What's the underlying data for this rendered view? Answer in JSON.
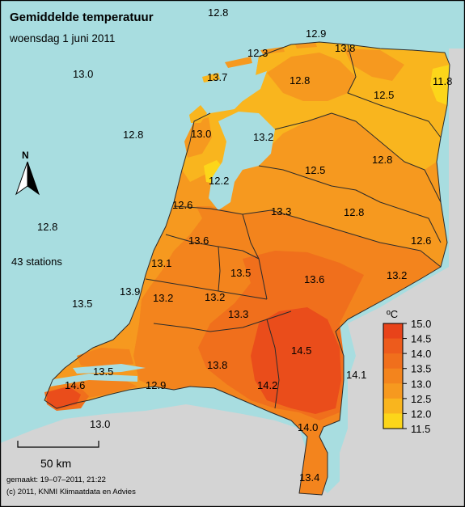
{
  "title": "Gemiddelde temperatuur",
  "subtitle": "woensdag 1 juni 2011",
  "station_count": "43 stations",
  "north_label": "N",
  "scale_label": "50 km",
  "footer": {
    "made": "gemaakt: 19–07–2011, 21:22",
    "copyright": "(c) 2011, KNMI Klimaatdata en Advies"
  },
  "legend": {
    "unit": "ºC",
    "ticks": [
      "15.0",
      "14.5",
      "14.0",
      "13.5",
      "13.0",
      "12.5",
      "12.0",
      "11.5"
    ],
    "colors": [
      "#e8431a",
      "#ed5b1c",
      "#f06f1c",
      "#f3841d",
      "#f6991f",
      "#f9b51e",
      "#fcd61a",
      "#ffff00"
    ]
  },
  "colors": {
    "sea": "#a8dde0",
    "foreign_land": "#d4d4d4",
    "temp_12_5": "#f9b51e",
    "temp_13_0": "#f6991f",
    "temp_13_5": "#f3841d",
    "temp_14_0": "#f06f1c",
    "temp_14_5": "#e8431a",
    "temp_12_0": "#fcd61a"
  },
  "stations": [
    {
      "value": "12.8"
    },
    {
      "value": "12.9"
    },
    {
      "value": "12.3"
    },
    {
      "value": "13.8"
    },
    {
      "value": "13.0"
    },
    {
      "value": "13.7"
    },
    {
      "value": "12.8"
    },
    {
      "value": "12.5"
    },
    {
      "value": "11.8"
    },
    {
      "value": "12.8"
    },
    {
      "value": "13.0"
    },
    {
      "value": "13.2"
    },
    {
      "value": "12.8"
    },
    {
      "value": "12.5"
    },
    {
      "value": "12.2"
    },
    {
      "value": "12.6"
    },
    {
      "value": "13.3"
    },
    {
      "value": "12.8"
    },
    {
      "value": "12.8"
    },
    {
      "value": "12.6"
    },
    {
      "value": "13.6"
    },
    {
      "value": "43 stations"
    },
    {
      "value": "13.1"
    },
    {
      "value": "13.5"
    },
    {
      "value": "13.6"
    },
    {
      "value": "13.2"
    },
    {
      "value": "13.5"
    },
    {
      "value": "13.9"
    },
    {
      "value": "13.2"
    },
    {
      "value": "13.2"
    },
    {
      "value": "13.3"
    },
    {
      "value": "14.5"
    },
    {
      "value": "13.8"
    },
    {
      "value": "13.5"
    },
    {
      "value": "14.1"
    },
    {
      "value": "14.6"
    },
    {
      "value": "12.9"
    },
    {
      "value": "14.2"
    },
    {
      "value": "13.0"
    },
    {
      "value": "14.0"
    },
    {
      "value": "13.4"
    }
  ]
}
